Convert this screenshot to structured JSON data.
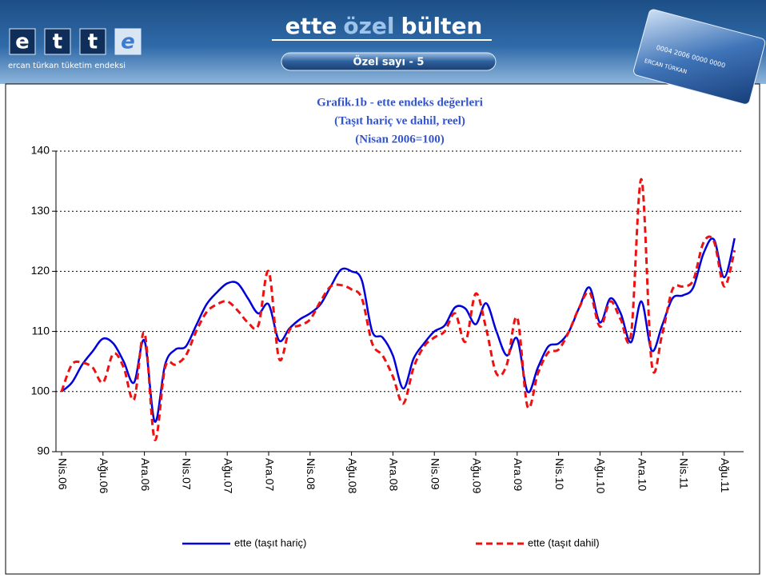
{
  "header": {
    "logo_letters": [
      "e",
      "t",
      "t",
      "e"
    ],
    "logo_caption": "ercan türkan tüketim endeksi",
    "title_parts": [
      "ette",
      "özel",
      "bülten"
    ],
    "issue": "Özel sayı - 5",
    "card_number": "0004 2006 0000 0000",
    "card_name": "ERCAN TÜRKAN"
  },
  "chart_data": {
    "type": "line",
    "title": "Grafik.1b - ette endeks değerleri",
    "subtitles": [
      "(Taşıt hariç ve dahil, reel)",
      "(Nisan 2006=100)"
    ],
    "categories": [
      "Nis.06",
      null,
      null,
      null,
      "Ağu.06",
      null,
      null,
      null,
      "Ara.06",
      null,
      null,
      null,
      "Nis.07",
      null,
      null,
      null,
      "Ağu.07",
      null,
      null,
      null,
      "Ara.07",
      null,
      null,
      null,
      "Nis.08",
      null,
      null,
      null,
      "Ağu.08",
      null,
      null,
      null,
      "Ara.08",
      null,
      null,
      null,
      "Nis.09",
      null,
      null,
      null,
      "Ağu.09",
      null,
      null,
      null,
      "Ara.09",
      null,
      null,
      null,
      "Nis.10",
      null,
      null,
      null,
      "Ağu.10",
      null,
      null,
      null,
      "Ara.10",
      null,
      null,
      null,
      "Nis.11",
      null,
      null,
      null,
      "Ağu.11",
      null
    ],
    "series": [
      {
        "name": "ette (taşıt hariç)",
        "color": "#0000dd",
        "dashed": false,
        "values": [
          100,
          101.5,
          104.5,
          106.7,
          108.8,
          108,
          105,
          101.5,
          108.5,
          95,
          104.5,
          107,
          107.5,
          111,
          114.5,
          116.5,
          118,
          118,
          115.5,
          113,
          114.5,
          108.5,
          110.5,
          112,
          113,
          114.5,
          117.5,
          120.3,
          120,
          118.5,
          110,
          109,
          106,
          100.5,
          105.5,
          108,
          110,
          111,
          114,
          113.8,
          111.2,
          114.7,
          110,
          106,
          108.8,
          100,
          104,
          107.5,
          108,
          110,
          114,
          117.3,
          111.5,
          115.5,
          113,
          108.2,
          115,
          106.8,
          111,
          115.5,
          116,
          117.3,
          123,
          125.3,
          119,
          125.5
        ]
      },
      {
        "name": "ette (taşıt dahil)",
        "color": "#ee1111",
        "dashed": true,
        "values": [
          100,
          104.5,
          104.8,
          104,
          101.5,
          106.3,
          104,
          98.7,
          109.8,
          92,
          104,
          104.5,
          106,
          110,
          113.2,
          114.5,
          115,
          113.5,
          111.5,
          111,
          120,
          105.5,
          110.2,
          111,
          112,
          115,
          117.5,
          117.7,
          117,
          115.5,
          108,
          106,
          102.5,
          98,
          104,
          107.5,
          109,
          110,
          113,
          108.3,
          116.3,
          110.5,
          103,
          104.5,
          112.3,
          97.5,
          103,
          106.5,
          107,
          110,
          114,
          116.5,
          110.8,
          115,
          112,
          109.5,
          135.3,
          104.5,
          109.5,
          117,
          117.5,
          118.5,
          124.8,
          125,
          117.5,
          123.5
        ]
      }
    ],
    "ylim": [
      90,
      140
    ],
    "yticks": [
      90,
      100,
      110,
      120,
      130,
      140
    ],
    "grid": true,
    "legend": "bottom"
  }
}
